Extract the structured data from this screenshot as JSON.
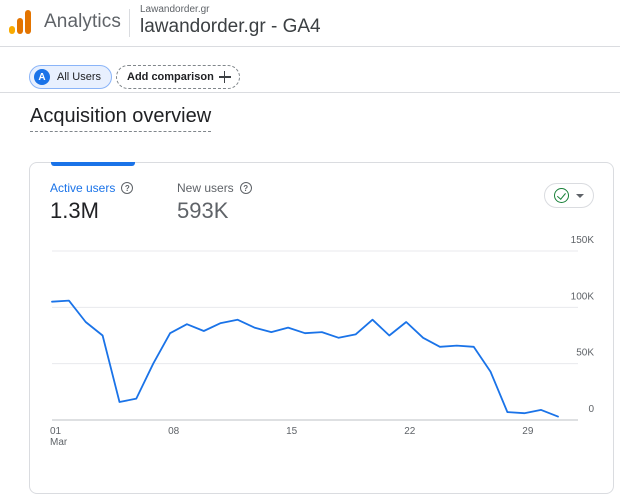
{
  "header": {
    "product_name": "Analytics",
    "account_name": "Lawandorder.gr",
    "property_name": "lawandorder.gr - GA4",
    "logo_colors": [
      "#f9ab00",
      "#e37400",
      "#e37400"
    ]
  },
  "comparison": {
    "segment_avatar": "A",
    "segment_label": "All Users",
    "add_label": "Add comparison",
    "add_icon": "plus-icon"
  },
  "page": {
    "title": "Acquisition overview"
  },
  "card": {
    "metrics": [
      {
        "label": "Active users",
        "value": "1.3M",
        "help_icon": "?"
      },
      {
        "label": "New users",
        "value": "593K",
        "help_icon": "?"
      }
    ],
    "insights_icon": "check-circle-icon",
    "accent_color": "#1a73e8"
  },
  "chart_data": {
    "type": "line",
    "series": [
      {
        "values": [
          105000,
          106000,
          87000,
          75000,
          16000,
          19000,
          50000,
          77000,
          85000,
          79000,
          86000,
          89000,
          82000,
          78000,
          82000,
          77000,
          78000,
          73000,
          76000,
          89000,
          75000,
          87000,
          73000,
          65000,
          66000,
          65000,
          43000,
          7000,
          6000,
          9000,
          3000
        ]
      }
    ],
    "x": [
      1,
      2,
      3,
      4,
      5,
      6,
      7,
      8,
      9,
      10,
      11,
      12,
      13,
      14,
      15,
      16,
      17,
      18,
      19,
      20,
      21,
      22,
      23,
      24,
      25,
      26,
      27,
      28,
      29,
      30,
      31
    ],
    "x_ticks": [
      {
        "x": 1,
        "label": "01",
        "sublabel": "Mar"
      },
      {
        "x": 8,
        "label": "08",
        "sublabel": ""
      },
      {
        "x": 15,
        "label": "15",
        "sublabel": ""
      },
      {
        "x": 22,
        "label": "22",
        "sublabel": ""
      },
      {
        "x": 29,
        "label": "29",
        "sublabel": ""
      }
    ],
    "y_ticks": [
      {
        "value": 150000,
        "label": "150K"
      },
      {
        "value": 100000,
        "label": "100K"
      },
      {
        "value": 50000,
        "label": "50K"
      },
      {
        "value": 0,
        "label": "0"
      }
    ],
    "ylim": [
      0,
      150000
    ],
    "xlim": [
      1,
      31
    ],
    "grid": true,
    "line_color": "#1a73e8"
  }
}
